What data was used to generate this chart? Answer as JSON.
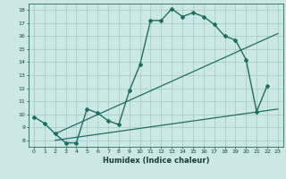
{
  "bg_color": "#cce8e4",
  "grid_color": "#a8cdc8",
  "line_color": "#1a6e64",
  "xlabel": "Humidex (Indice chaleur)",
  "xlim": [
    -0.5,
    23.5
  ],
  "ylim": [
    7.5,
    18.5
  ],
  "yticks": [
    8,
    9,
    10,
    11,
    12,
    13,
    14,
    15,
    16,
    17,
    18
  ],
  "xticks": [
    0,
    1,
    2,
    3,
    4,
    5,
    6,
    7,
    8,
    9,
    10,
    11,
    12,
    13,
    14,
    15,
    16,
    17,
    18,
    19,
    20,
    21,
    22,
    23
  ],
  "curve_x": [
    0,
    1,
    2,
    3,
    4,
    5,
    6,
    7,
    8,
    9,
    10,
    11,
    12,
    13,
    14,
    15,
    16,
    17,
    18,
    19,
    20,
    21,
    22
  ],
  "curve_y": [
    9.8,
    9.3,
    8.5,
    7.8,
    7.8,
    10.4,
    10.1,
    9.5,
    9.2,
    11.8,
    13.8,
    17.2,
    17.2,
    18.1,
    17.5,
    17.8,
    17.5,
    16.9,
    16.0,
    15.7,
    14.2,
    10.2,
    12.2
  ],
  "line1_x": [
    2,
    23
  ],
  "line1_y": [
    8.5,
    16.2
  ],
  "line2_x": [
    2,
    23
  ],
  "line2_y": [
    8.0,
    10.4
  ]
}
